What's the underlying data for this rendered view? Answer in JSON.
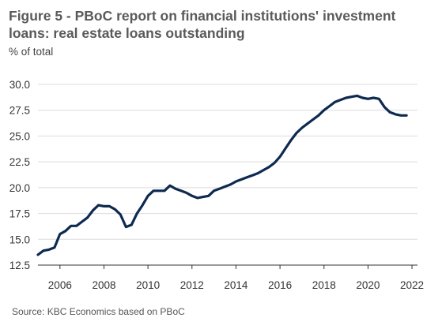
{
  "title": "Figure 5 - PBoC report on financial institutions' investment loans: real estate loans outstanding",
  "subtitle": "% of total",
  "source": "Source: KBC Economics based on PBoC",
  "colors": {
    "line": "#0e2a50",
    "grid": "#dcdcdc",
    "axis": "#333333"
  },
  "chart_data": {
    "type": "line",
    "title": "Figure 5 - PBoC report on financial institutions' investment loans: real estate loans outstanding",
    "ylabel": "% of total",
    "xlabel": "",
    "xlim": [
      2005.0,
      2022.25
    ],
    "ylim": [
      12.5,
      30.0
    ],
    "xticks": [
      2006,
      2008,
      2010,
      2012,
      2014,
      2016,
      2018,
      2020,
      2022
    ],
    "yticks": [
      12.5,
      15.0,
      17.5,
      20.0,
      22.5,
      25.0,
      27.5,
      30.0
    ],
    "ytick_labels": [
      "12.5",
      "15.0",
      "17.5",
      "20.0",
      "22.5",
      "25.0",
      "27.5",
      "30.0"
    ],
    "grid": "horizontal",
    "legend": "none",
    "series": [
      {
        "x": [
          2005.0,
          2005.25,
          2005.5,
          2005.75,
          2006.0,
          2006.25,
          2006.5,
          2006.75,
          2007.0,
          2007.25,
          2007.5,
          2007.75,
          2008.0,
          2008.25,
          2008.5,
          2008.75,
          2009.0,
          2009.25,
          2009.5,
          2009.75,
          2010.0,
          2010.25,
          2010.5,
          2010.75,
          2011.0,
          2011.25,
          2011.5,
          2011.75,
          2012.0,
          2012.25,
          2012.5,
          2012.75,
          2013.0,
          2013.25,
          2013.5,
          2013.75,
          2014.0,
          2014.25,
          2014.5,
          2014.75,
          2015.0,
          2015.25,
          2015.5,
          2015.75,
          2016.0,
          2016.25,
          2016.5,
          2016.75,
          2017.0,
          2017.25,
          2017.5,
          2017.75,
          2018.0,
          2018.25,
          2018.5,
          2018.75,
          2019.0,
          2019.25,
          2019.5,
          2019.75,
          2020.0,
          2020.25,
          2020.5,
          2020.75,
          2021.0,
          2021.25,
          2021.5,
          2021.75
        ],
        "values": [
          13.5,
          13.9,
          14.0,
          14.2,
          15.5,
          15.8,
          16.3,
          16.3,
          16.7,
          17.1,
          17.8,
          18.3,
          18.2,
          18.2,
          17.9,
          17.4,
          16.2,
          16.4,
          17.5,
          18.3,
          19.2,
          19.7,
          19.7,
          19.7,
          20.2,
          19.9,
          19.7,
          19.5,
          19.2,
          19.0,
          19.1,
          19.2,
          19.7,
          19.9,
          20.1,
          20.3,
          20.6,
          20.8,
          21.0,
          21.2,
          21.4,
          21.7,
          22.0,
          22.4,
          23.0,
          23.8,
          24.6,
          25.3,
          25.8,
          26.2,
          26.6,
          27.0,
          27.5,
          27.9,
          28.3,
          28.5,
          28.7,
          28.8,
          28.9,
          28.7,
          28.6,
          28.7,
          28.6,
          27.8,
          27.3,
          27.1,
          27.0,
          27.0
        ]
      }
    ]
  }
}
